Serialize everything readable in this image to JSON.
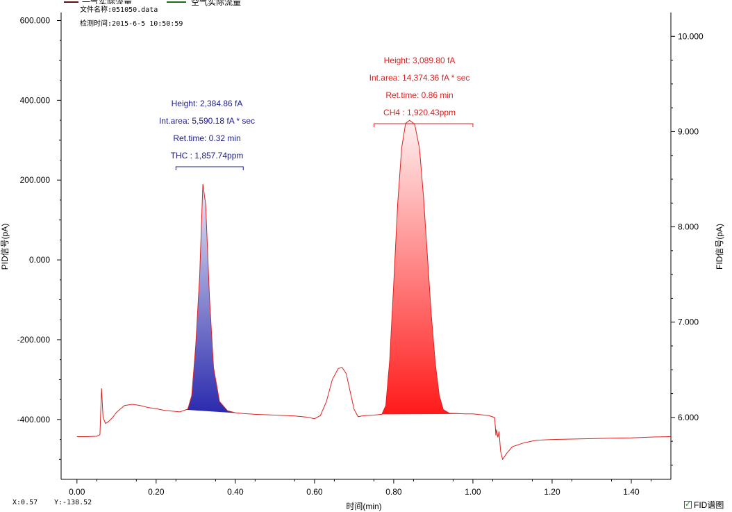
{
  "legend": {
    "series1_label": "一气实际流量",
    "series1_color": "#5a0f0f",
    "series2_label": "空气实际流量",
    "series2_color": "#1a6b1a"
  },
  "file_info": {
    "file_name": "文件名称:051050.data",
    "test_time": "检测时间:2015-6-5 10:50:59"
  },
  "cursor_readout": {
    "x": "X:0.57",
    "y": "Y:-138.52"
  },
  "fid_toggle": {
    "label": "FID谱图",
    "checked": true
  },
  "colors": {
    "signal_line": "#e02020",
    "thc_fill_top": "#e8e8f4",
    "thc_fill_bottom": "#2a2aae",
    "ch4_fill_top": "#fff0f0",
    "ch4_fill_bottom": "#ff1a1a",
    "thc_annotation": "#1a1a8c",
    "ch4_annotation": "#e02020"
  },
  "chart_data": {
    "type": "line",
    "xlabel": "时间(min)",
    "ylabel": "PID信号(pA)",
    "y2label": "FID信号(pA)",
    "xlim": [
      -0.04,
      1.5
    ],
    "ylim": [
      -550,
      620
    ],
    "y2lim": [
      5.35,
      10.25
    ],
    "xticks": [
      0.0,
      0.2,
      0.4,
      0.6,
      0.8,
      1.0,
      1.2,
      1.4
    ],
    "xtick_labels": [
      "0.00",
      "0.20",
      "0.40",
      "0.60",
      "0.80",
      "1.00",
      "1.20",
      "1.40"
    ],
    "yticks": [
      600,
      400,
      200,
      0,
      -200,
      -400
    ],
    "ytick_labels": [
      "600.000",
      "400.000",
      "200.000",
      "0.000",
      "-200.000",
      "-400.000"
    ],
    "y2ticks": [
      10,
      9,
      8,
      7,
      6
    ],
    "y2tick_labels": [
      "10.000",
      "9.000",
      "8.000",
      "7.000",
      "6.000"
    ],
    "grid": false,
    "series": [
      {
        "name": "FID",
        "x": [
          0.0,
          0.02,
          0.05,
          0.058,
          0.062,
          0.066,
          0.072,
          0.08,
          0.09,
          0.1,
          0.12,
          0.14,
          0.16,
          0.18,
          0.2,
          0.22,
          0.24,
          0.26,
          0.28,
          0.29,
          0.3,
          0.31,
          0.318,
          0.325,
          0.335,
          0.345,
          0.36,
          0.38,
          0.4,
          0.42,
          0.45,
          0.5,
          0.55,
          0.58,
          0.6,
          0.615,
          0.63,
          0.645,
          0.66,
          0.67,
          0.68,
          0.69,
          0.7,
          0.71,
          0.72,
          0.73,
          0.75,
          0.77,
          0.78,
          0.79,
          0.8,
          0.81,
          0.82,
          0.83,
          0.84,
          0.853,
          0.865,
          0.875,
          0.885,
          0.895,
          0.905,
          0.915,
          0.925,
          0.94,
          0.96,
          0.98,
          1.0,
          1.02,
          1.04,
          1.055,
          1.058,
          1.06,
          1.063,
          1.066,
          1.07,
          1.075,
          1.085,
          1.1,
          1.13,
          1.16,
          1.2,
          1.25,
          1.3,
          1.35,
          1.4,
          1.45,
          1.5
        ],
        "y": [
          -443,
          -443,
          -442,
          -438,
          -322,
          -395,
          -410,
          -405,
          -395,
          -382,
          -365,
          -362,
          -365,
          -370,
          -373,
          -377,
          -379,
          -381,
          -374,
          -340,
          -215,
          -40,
          190,
          140,
          -100,
          -270,
          -355,
          -378,
          -383,
          -385,
          -387,
          -389,
          -391,
          -394,
          -398,
          -390,
          -355,
          -300,
          -272,
          -270,
          -285,
          -330,
          -375,
          -393,
          -391,
          -390,
          -389,
          -387,
          -365,
          -250,
          -60,
          140,
          280,
          342,
          350,
          340,
          280,
          160,
          10,
          -140,
          -260,
          -340,
          -375,
          -384,
          -385,
          -386,
          -386,
          -388,
          -390,
          -395,
          -440,
          -425,
          -445,
          -430,
          -480,
          -500,
          -485,
          -468,
          -458,
          -452,
          -450,
          -449,
          -448,
          -447,
          -446,
          -444,
          -443
        ]
      }
    ],
    "peaks": [
      {
        "name": "THC",
        "x_start": 0.275,
        "x_end": 0.42,
        "bracket_x": [
          0.25,
          0.42
        ],
        "annotation": [
          "Height: 2,384.86 fA",
          "Int.area: 5,590.18 fA * sec",
          "Ret.time: 0.32 min",
          "THC : 1,857.74ppm"
        ]
      },
      {
        "name": "CH4",
        "x_start": 0.77,
        "x_end": 0.98,
        "bracket_x": [
          0.75,
          1.0
        ],
        "annotation": [
          "Height: 3,089.80 fA",
          "Int.area: 14,374.36 fA * sec",
          "Ret.time: 0.86 min",
          "CH4 : 1,920.43ppm"
        ]
      }
    ]
  }
}
